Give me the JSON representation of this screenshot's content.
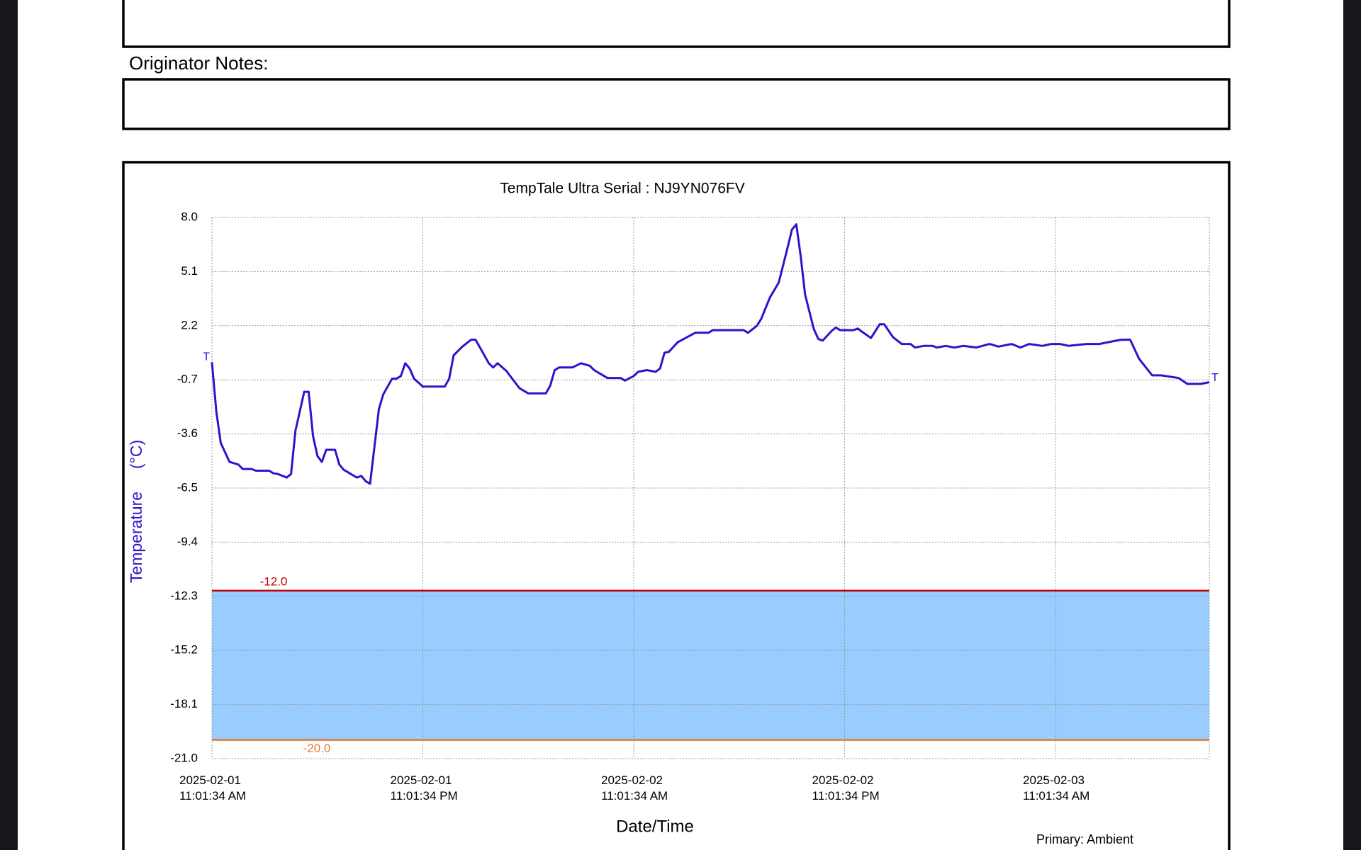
{
  "notes_label": "Originator Notes:",
  "chart_data": {
    "type": "line",
    "title": "TempTale Ultra  Serial : NJ9YN076FV",
    "x_label": "Date/Time",
    "y_label": "Temperature     (°C)",
    "footer": "Primary: Ambient",
    "annotations": [
      "T",
      "T"
    ],
    "xlim": [
      "2025-02-01 11:01:34",
      "2025-02-03 19:46:34"
    ],
    "xticks": [
      {
        "value": "2025-02-01 11:01:34",
        "label": "2025-02-01 11:01:34 AM"
      },
      {
        "value": "2025-02-01 23:01:34",
        "label": "2025-02-01 11:01:34 PM"
      },
      {
        "value": "2025-02-02 11:01:34",
        "label": "2025-02-02 11:01:34 AM"
      },
      {
        "value": "2025-02-02 23:01:34",
        "label": "2025-02-02 11:01:34 PM"
      },
      {
        "value": "2025-02-03 11:01:34",
        "label": "2025-02-03 11:01:34 AM"
      }
    ],
    "ylim": [
      -21,
      8
    ],
    "yticks": [
      {
        "value": 8,
        "label": "8.0"
      },
      5.1,
      2.2,
      -0.7,
      -3.6,
      -6.5,
      -9.4,
      -12.3,
      -15.2,
      -18.1,
      {
        "value": -21,
        "label": "-21.0"
      }
    ],
    "grid": true,
    "band_color": "#99ccff",
    "thresholds": [
      {
        "value": -12,
        "label": "-12.0",
        "color": "#c00000"
      },
      {
        "value": -20,
        "label": "-20.0",
        "color": "#e07b39"
      }
    ],
    "series": [
      {
        "name": "Primary: Ambient",
        "color": "#3311cc",
        "x": [
          "2025-02-01 11:01:34",
          "2025-02-01 11:16:34",
          "2025-02-01 11:31:34",
          "2025-02-01 11:46:34",
          "2025-02-01 12:01:34",
          "2025-02-01 12:31:34",
          "2025-02-01 12:46:34",
          "2025-02-01 13:16:34",
          "2025-02-01 13:31:34",
          "2025-02-01 14:16:34",
          "2025-02-01 14:31:34",
          "2025-02-01 14:46:34",
          "2025-02-01 15:16:34",
          "2025-02-01 15:31:34",
          "2025-02-01 15:46:34",
          "2025-02-01 16:16:34",
          "2025-02-01 16:31:34",
          "2025-02-01 16:46:34",
          "2025-02-01 17:01:34",
          "2025-02-01 17:16:34",
          "2025-02-01 17:31:34",
          "2025-02-01 18:01:34",
          "2025-02-01 18:16:34",
          "2025-02-01 18:31:34",
          "2025-02-01 19:01:34",
          "2025-02-01 19:16:34",
          "2025-02-01 19:31:34",
          "2025-02-01 19:46:34",
          "2025-02-01 20:01:34",
          "2025-02-01 20:31:34",
          "2025-02-01 20:46:34",
          "2025-02-01 21:16:34",
          "2025-02-01 21:31:34",
          "2025-02-01 21:46:34",
          "2025-02-01 22:01:34",
          "2025-02-01 22:16:34",
          "2025-02-01 22:31:34",
          "2025-02-01 23:01:34",
          "2025-02-02 00:16:34",
          "2025-02-02 00:31:34",
          "2025-02-02 00:46:34",
          "2025-02-02 01:16:34",
          "2025-02-02 01:46:34",
          "2025-02-02 02:01:34",
          "2025-02-02 02:31:34",
          "2025-02-02 02:46:34",
          "2025-02-02 03:01:34",
          "2025-02-02 03:16:34",
          "2025-02-02 03:46:34",
          "2025-02-02 04:31:34",
          "2025-02-02 05:01:34",
          "2025-02-02 06:01:34",
          "2025-02-02 06:16:34",
          "2025-02-02 06:31:34",
          "2025-02-02 06:46:34",
          "2025-02-02 07:31:34",
          "2025-02-02 08:01:34",
          "2025-02-02 08:31:34",
          "2025-02-02 08:46:34",
          "2025-02-02 09:31:34",
          "2025-02-02 10:16:34",
          "2025-02-02 10:31:34",
          "2025-02-02 11:01:34",
          "2025-02-02 11:16:34",
          "2025-02-02 11:46:34",
          "2025-02-02 12:16:34",
          "2025-02-02 12:31:34",
          "2025-02-02 12:46:34",
          "2025-02-02 13:01:34",
          "2025-02-02 13:31:34",
          "2025-02-02 14:31:34",
          "2025-02-02 15:16:34",
          "2025-02-02 15:31:34",
          "2025-02-02 17:16:34",
          "2025-02-02 17:31:34",
          "2025-02-02 18:01:34",
          "2025-02-02 18:16:34",
          "2025-02-02 18:46:34",
          "2025-02-02 19:16:34",
          "2025-02-02 19:46:34",
          "2025-02-02 20:01:34",
          "2025-02-02 20:16:34",
          "2025-02-02 20:31:34",
          "2025-02-02 20:46:34",
          "2025-02-02 21:16:34",
          "2025-02-02 21:31:34",
          "2025-02-02 21:46:34",
          "2025-02-02 22:16:34",
          "2025-02-02 22:31:34",
          "2025-02-02 22:46:34",
          "2025-02-02 23:31:34",
          "2025-02-02 23:46:34",
          "2025-02-03 00:01:34",
          "2025-02-03 00:31:34",
          "2025-02-03 01:01:34",
          "2025-02-03 01:16:34",
          "2025-02-03 01:46:34",
          "2025-02-03 02:16:34",
          "2025-02-03 02:46:34",
          "2025-02-03 03:01:34",
          "2025-02-03 03:31:34",
          "2025-02-03 04:01:34",
          "2025-02-03 04:16:34",
          "2025-02-03 04:46:34",
          "2025-02-03 05:16:34",
          "2025-02-03 05:46:34",
          "2025-02-03 06:31:34",
          "2025-02-03 07:16:34",
          "2025-02-03 07:46:34",
          "2025-02-03 08:31:34",
          "2025-02-03 09:01:34",
          "2025-02-03 09:31:34",
          "2025-02-03 10:16:34",
          "2025-02-03 10:46:34",
          "2025-02-03 11:16:34",
          "2025-02-03 11:46:34",
          "2025-02-03 12:46:34",
          "2025-02-03 13:31:34",
          "2025-02-03 14:16:34",
          "2025-02-03 14:46:34",
          "2025-02-03 15:16:34",
          "2025-02-03 15:46:34",
          "2025-02-03 16:31:34",
          "2025-02-03 17:01:34",
          "2025-02-03 18:01:34",
          "2025-02-03 18:31:34",
          "2025-02-03 19:16:34",
          "2025-02-03 19:46:34"
        ],
        "values": [
          0.24,
          -2.41,
          -4.08,
          -4.59,
          -5.1,
          -5.24,
          -5.48,
          -5.48,
          -5.57,
          -5.57,
          -5.71,
          -5.75,
          -5.94,
          -5.75,
          -3.43,
          -1.34,
          -1.34,
          -3.71,
          -4.78,
          -5.1,
          -4.45,
          -4.45,
          -5.24,
          -5.52,
          -5.8,
          -5.94,
          -5.85,
          -6.13,
          -6.27,
          -2.27,
          -1.48,
          -0.64,
          -0.64,
          -0.5,
          0.19,
          -0.09,
          -0.64,
          -1.06,
          -1.06,
          -0.64,
          0.61,
          1.08,
          1.45,
          1.45,
          0.61,
          0.19,
          -0.04,
          0.19,
          -0.22,
          -1.15,
          -1.43,
          -1.43,
          -1.01,
          -0.18,
          -0.04,
          -0.04,
          0.19,
          0.05,
          -0.18,
          -0.6,
          -0.6,
          -0.74,
          -0.5,
          -0.27,
          -0.18,
          -0.27,
          -0.09,
          0.75,
          0.8,
          1.31,
          1.82,
          1.82,
          1.96,
          1.96,
          1.82,
          2.19,
          2.56,
          3.72,
          4.51,
          6.37,
          7.35,
          7.63,
          5.91,
          3.86,
          2.01,
          1.49,
          1.4,
          1.91,
          2.1,
          1.96,
          1.96,
          2.05,
          1.87,
          1.54,
          2.28,
          2.28,
          1.59,
          1.22,
          1.22,
          1.03,
          1.12,
          1.12,
          1.03,
          1.12,
          1.03,
          1.12,
          1.03,
          1.22,
          1.08,
          1.22,
          1.03,
          1.22,
          1.12,
          1.22,
          1.22,
          1.12,
          1.22,
          1.22,
          1.36,
          1.45,
          1.45,
          0.43,
          -0.46,
          -0.46,
          -0.6,
          -0.92,
          -0.92,
          -0.83
        ]
      }
    ]
  }
}
